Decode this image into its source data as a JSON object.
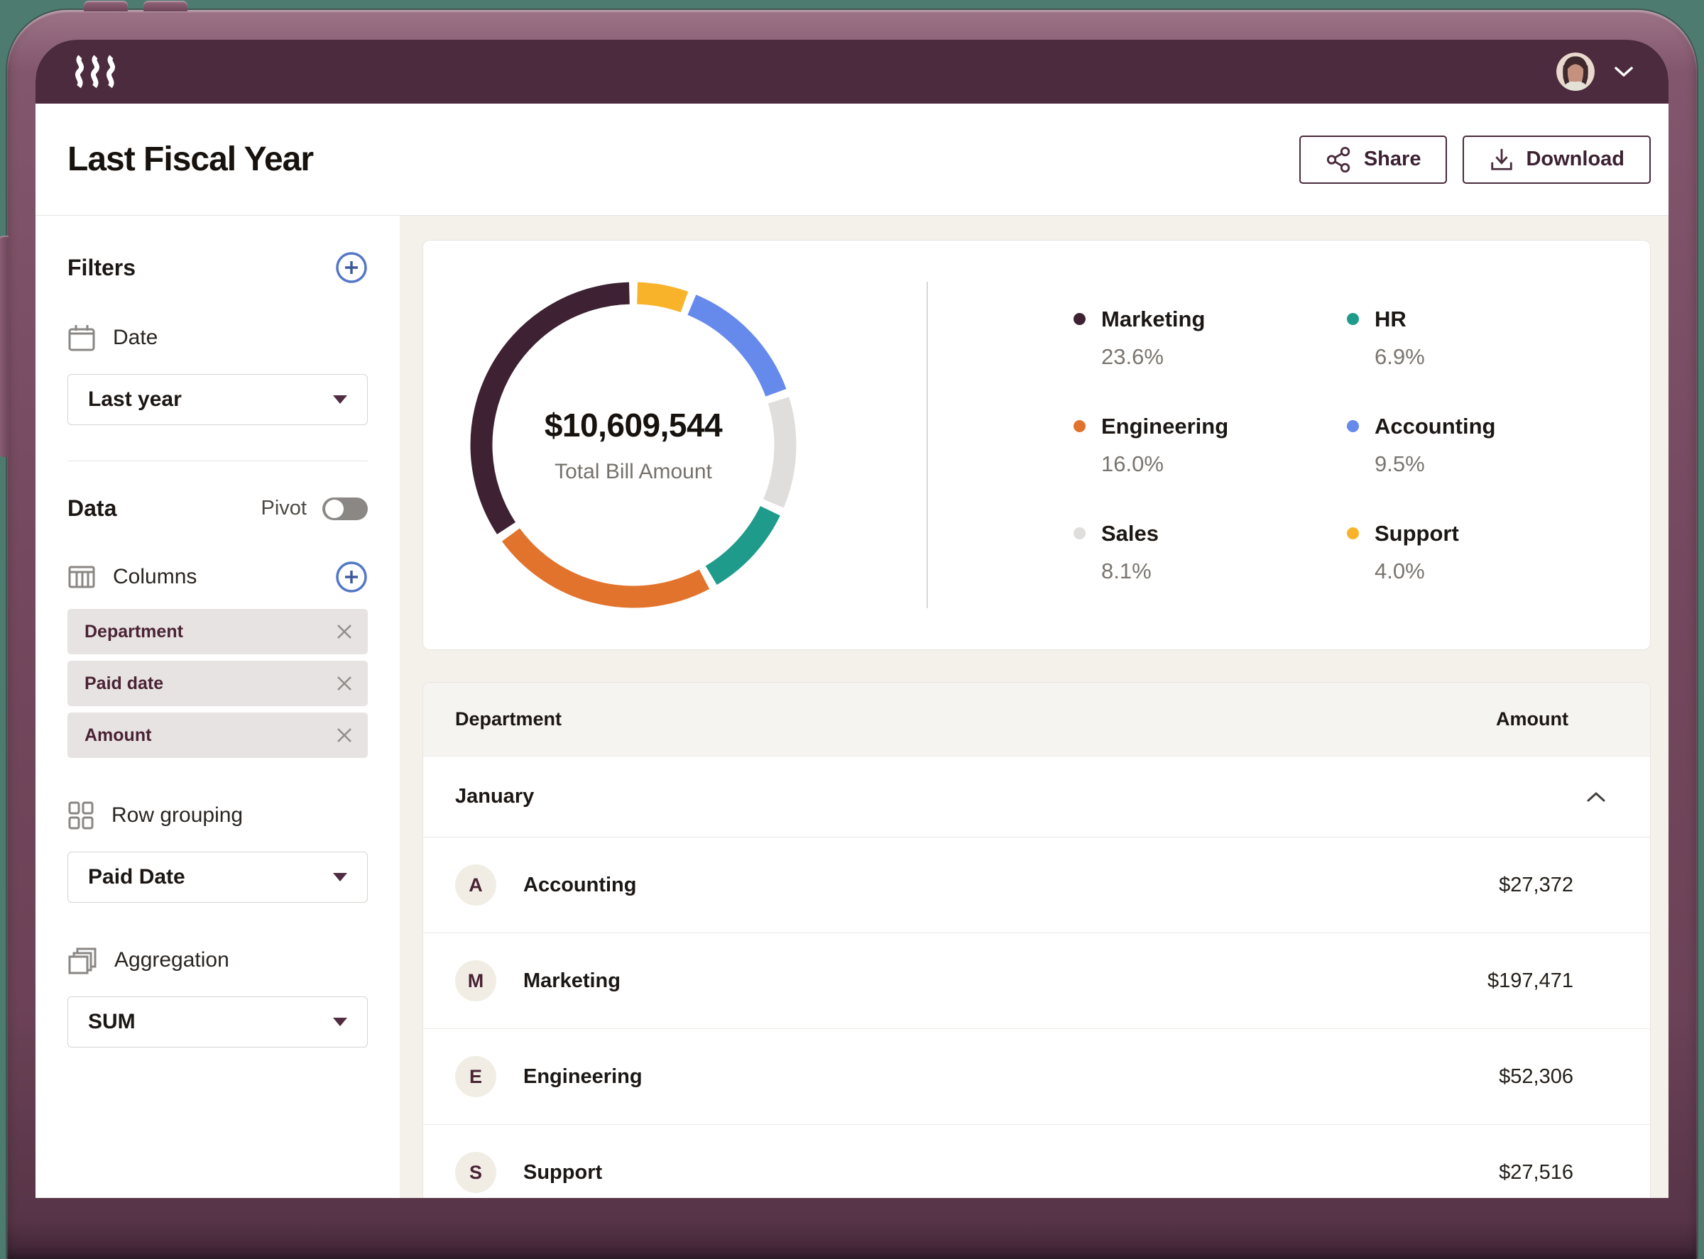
{
  "topbar": {
    "logo_name": "ramp-logo"
  },
  "header": {
    "title": "Last Fiscal Year",
    "share_label": "Share",
    "download_label": "Download"
  },
  "sidebar": {
    "filters": {
      "title": "Filters",
      "date_label": "Date",
      "date_value": "Last year"
    },
    "data": {
      "title": "Data",
      "pivot_label": "Pivot",
      "pivot_on": false,
      "columns_label": "Columns",
      "column_chips": [
        {
          "label": "Department"
        },
        {
          "label": "Paid date"
        },
        {
          "label": "Amount"
        }
      ],
      "row_grouping_label": "Row grouping",
      "row_grouping_value": "Paid Date",
      "aggregation_label": "Aggregation",
      "aggregation_value": "SUM"
    }
  },
  "chart_data": {
    "type": "donut",
    "center_value": "$10,609,544",
    "center_label": "Total Bill Amount",
    "segments_clockwise_from_top": [
      {
        "label": "Support",
        "pct": 4.0,
        "color": "#F8B32B"
      },
      {
        "label": "Accounting",
        "pct": 9.5,
        "color": "#6689EC"
      },
      {
        "label": "Sales",
        "pct": 8.1,
        "color": "#E0DEDC"
      },
      {
        "label": "HR",
        "pct": 6.9,
        "color": "#1E9B8A"
      },
      {
        "label": "Engineering",
        "pct": 16.0,
        "color": "#E2732C"
      },
      {
        "label": "Marketing",
        "pct": 23.6,
        "color": "#3E2233"
      }
    ],
    "legend": [
      {
        "label": "Marketing",
        "value": "23.6%",
        "color": "#3E2233"
      },
      {
        "label": "HR",
        "value": "6.9%",
        "color": "#1E9B8A"
      },
      {
        "label": "Engineering",
        "value": "16.0%",
        "color": "#E2732C"
      },
      {
        "label": "Accounting",
        "value": "9.5%",
        "color": "#6689EC"
      },
      {
        "label": "Sales",
        "value": "8.1%",
        "color": "#E0DEDC"
      },
      {
        "label": "Support",
        "value": "4.0%",
        "color": "#F8B32B"
      }
    ]
  },
  "table": {
    "columns": {
      "department": "Department",
      "amount": "Amount"
    },
    "group": {
      "label": "January",
      "collapsed": false
    },
    "rows": [
      {
        "initial": "A",
        "department": "Accounting",
        "amount": "$27,372"
      },
      {
        "initial": "M",
        "department": "Marketing",
        "amount": "$197,471"
      },
      {
        "initial": "E",
        "department": "Engineering",
        "amount": "$52,306"
      },
      {
        "initial": "S",
        "department": "Support",
        "amount": "$27,516"
      }
    ]
  }
}
